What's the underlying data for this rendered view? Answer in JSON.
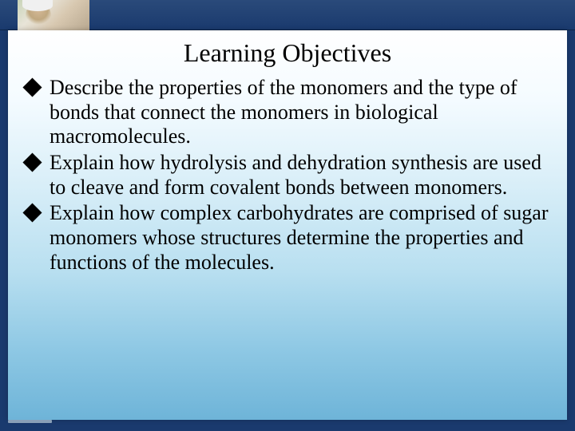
{
  "slide": {
    "title": "Learning Objectives",
    "bullets": [
      "Describe the properties of the monomers and the type of bonds that connect the monomers in biological macromolecules.",
      "Explain how hydrolysis and dehydration synthesis are used to cleave and form covalent bonds between monomers.",
      "Explain how complex carbohydrates are comprised of sugar monomers whose structures determine the properties and functions of the molecules."
    ],
    "title_fontsize": 32,
    "body_fontsize": 26,
    "bullet_glyph": "diamond",
    "bullet_color": "#000000",
    "text_color": "#000000",
    "background_gradient": [
      "#ffffff",
      "#f4fbff",
      "#d8eef8",
      "#b8dff0",
      "#8ec8e4",
      "#6eb4d8"
    ],
    "frame_color": "#1a3a6e",
    "font_family": "Times New Roman"
  }
}
